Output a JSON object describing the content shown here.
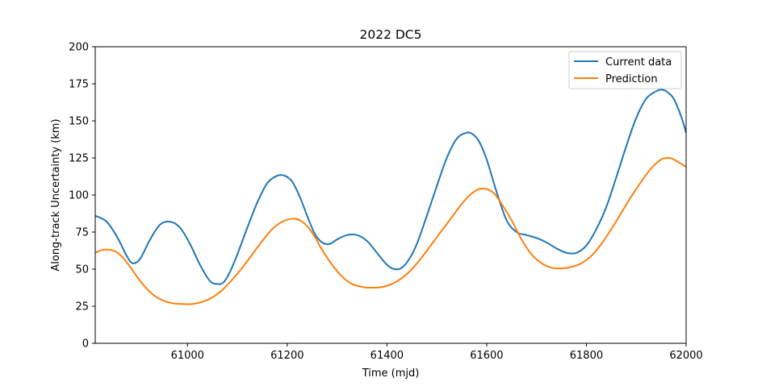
{
  "chart_data": {
    "type": "line",
    "title": "2022 DC5",
    "xlabel": "Time (mjd)",
    "ylabel": "Along-track Uncertainty (km)",
    "xlim": [
      60815,
      62000
    ],
    "ylim": [
      0,
      200
    ],
    "xticks": [
      61000,
      61200,
      61400,
      61600,
      61800,
      62000
    ],
    "yticks": [
      0,
      25,
      50,
      75,
      100,
      125,
      150,
      175,
      200
    ],
    "grid": false,
    "legend_position": "top-right",
    "series": [
      {
        "name": "Current data",
        "color": "#1f77b4",
        "x": [
          60815,
          60838,
          60860,
          60878,
          60890,
          60905,
          60925,
          60945,
          60965,
          60985,
          61005,
          61025,
          61045,
          61060,
          61072,
          61085,
          61100,
          61120,
          61140,
          61160,
          61180,
          61195,
          61210,
          61225,
          61240,
          61255,
          61270,
          61285,
          61300,
          61320,
          61340,
          61360,
          61380,
          61400,
          61415,
          61430,
          61445,
          61460,
          61480,
          61500,
          61520,
          61540,
          61560,
          61572,
          61585,
          61600,
          61620,
          61640,
          61660,
          61680,
          61700,
          61720,
          61740,
          61760,
          61780,
          61800,
          61820,
          61840,
          61860,
          61880,
          61900,
          61920,
          61940,
          61950,
          61960,
          61975,
          61990,
          62000
        ],
        "y": [
          86,
          82,
          71,
          59,
          54,
          57,
          70,
          80,
          82,
          78,
          67,
          53,
          42,
          40,
          41,
          48,
          60,
          78,
          95,
          108,
          113,
          113,
          109,
          99,
          86,
          74,
          68,
          67,
          70,
          73,
          73,
          69,
          61,
          53,
          50,
          51,
          57,
          67,
          86,
          106,
          125,
          138,
          142,
          141,
          136,
          124,
          102,
          83,
          75,
          73,
          71,
          68,
          64,
          61,
          61,
          66,
          77,
          92,
          112,
          133,
          152,
          165,
          170,
          171,
          170,
          165,
          153,
          142
        ]
      },
      {
        "name": "Prediction",
        "color": "#ff7f0e",
        "x": [
          60815,
          60830,
          60845,
          60860,
          60875,
          60890,
          60910,
          60930,
          60950,
          60970,
          60990,
          61010,
          61030,
          61050,
          61070,
          61090,
          61110,
          61130,
          61150,
          61170,
          61190,
          61210,
          61225,
          61240,
          61255,
          61270,
          61290,
          61310,
          61330,
          61350,
          61370,
          61390,
          61410,
          61430,
          61450,
          61470,
          61490,
          61510,
          61530,
          61550,
          61570,
          61585,
          61600,
          61615,
          61630,
          61650,
          61670,
          61690,
          61710,
          61730,
          61750,
          61770,
          61790,
          61810,
          61830,
          61850,
          61870,
          61890,
          61910,
          61930,
          61950,
          61965,
          61975,
          61990,
          62000
        ],
        "y": [
          61,
          63,
          63,
          61,
          56,
          49,
          40,
          33,
          29,
          27,
          26.5,
          26.5,
          28,
          31,
          36,
          43,
          51,
          60,
          69,
          77,
          82,
          84,
          83,
          79,
          72,
          63,
          53,
          45,
          40,
          38,
          37.5,
          38,
          40,
          44,
          50,
          58,
          67,
          76,
          85,
          94,
          101,
          104,
          104,
          101,
          94,
          83,
          70,
          60,
          54,
          51,
          50.5,
          51.5,
          54,
          59,
          67,
          77,
          88,
          99,
          109,
          118,
          124,
          125,
          124,
          121,
          119
        ]
      }
    ]
  }
}
